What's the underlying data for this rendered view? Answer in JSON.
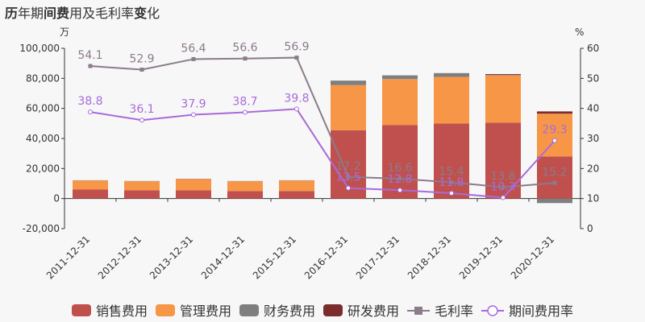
{
  "title": {
    "prefix": "历",
    "part1": "年期",
    "part2": "间费",
    "part3": "用及毛利率",
    "part4": "变",
    "part5": "化"
  },
  "chart_data": {
    "type": "bar+line",
    "categories": [
      "2011-12-31",
      "2012-12-31",
      "2013-12-31",
      "2014-12-31",
      "2015-12-31",
      "2016-12-31",
      "2017-12-31",
      "2018-12-31",
      "2019-12-31",
      "2020-12-31"
    ],
    "left_axis": {
      "unit": "万",
      "ylim": [
        -20000,
        100000
      ],
      "ticks": [
        "100,000",
        "80,000",
        "60,000",
        "40,000",
        "20,000",
        "0",
        "-20,000"
      ],
      "tick_values": [
        100000,
        80000,
        60000,
        40000,
        20000,
        0,
        -20000
      ]
    },
    "right_axis": {
      "unit": "%",
      "ylim": [
        0,
        60
      ],
      "ticks": [
        "60",
        "50",
        "40",
        "30",
        "20",
        "10",
        "0"
      ],
      "tick_values": [
        60,
        50,
        40,
        30,
        20,
        10,
        0
      ]
    },
    "bar_series": [
      {
        "name": "销售费用",
        "color": "#c0504d",
        "values": [
          6000,
          5500,
          5500,
          5000,
          5000,
          45500,
          49000,
          50000,
          50500,
          28000
        ]
      },
      {
        "name": "管理费用",
        "color": "#f79646",
        "values": [
          6000,
          6000,
          7500,
          6500,
          7000,
          30000,
          30500,
          31000,
          31500,
          28500
        ]
      },
      {
        "name": "财务费用",
        "color": "#7f7f7f",
        "values": [
          200,
          200,
          200,
          200,
          200,
          3000,
          2500,
          2500,
          300,
          -3000
        ]
      },
      {
        "name": "研发费用",
        "color": "#7b2c2c",
        "values": [
          0,
          0,
          0,
          0,
          0,
          0,
          0,
          0,
          500,
          1500
        ]
      }
    ],
    "line_series": [
      {
        "name": "毛利率",
        "color": "#8b7b8b",
        "values": [
          54.1,
          52.9,
          56.4,
          56.6,
          56.9,
          17.2,
          16.6,
          15.4,
          13.8,
          15.2
        ],
        "labels": [
          "54.1",
          "52.9",
          "56.4",
          "56.6",
          "56.9",
          "17.2",
          "16.6",
          "15.4",
          "13.8",
          "15.2"
        ]
      },
      {
        "name": "期间费用率",
        "color": "#a86bdb",
        "values": [
          38.8,
          36.1,
          37.9,
          38.7,
          39.8,
          13.5,
          12.8,
          11.8,
          10.3,
          29.3
        ],
        "labels": [
          "38.8",
          "36.1",
          "37.9",
          "38.7",
          "39.8",
          "13.5",
          "12.8",
          "11.8",
          "10.3",
          "29.3"
        ]
      }
    ],
    "legend_position": "bottom"
  }
}
